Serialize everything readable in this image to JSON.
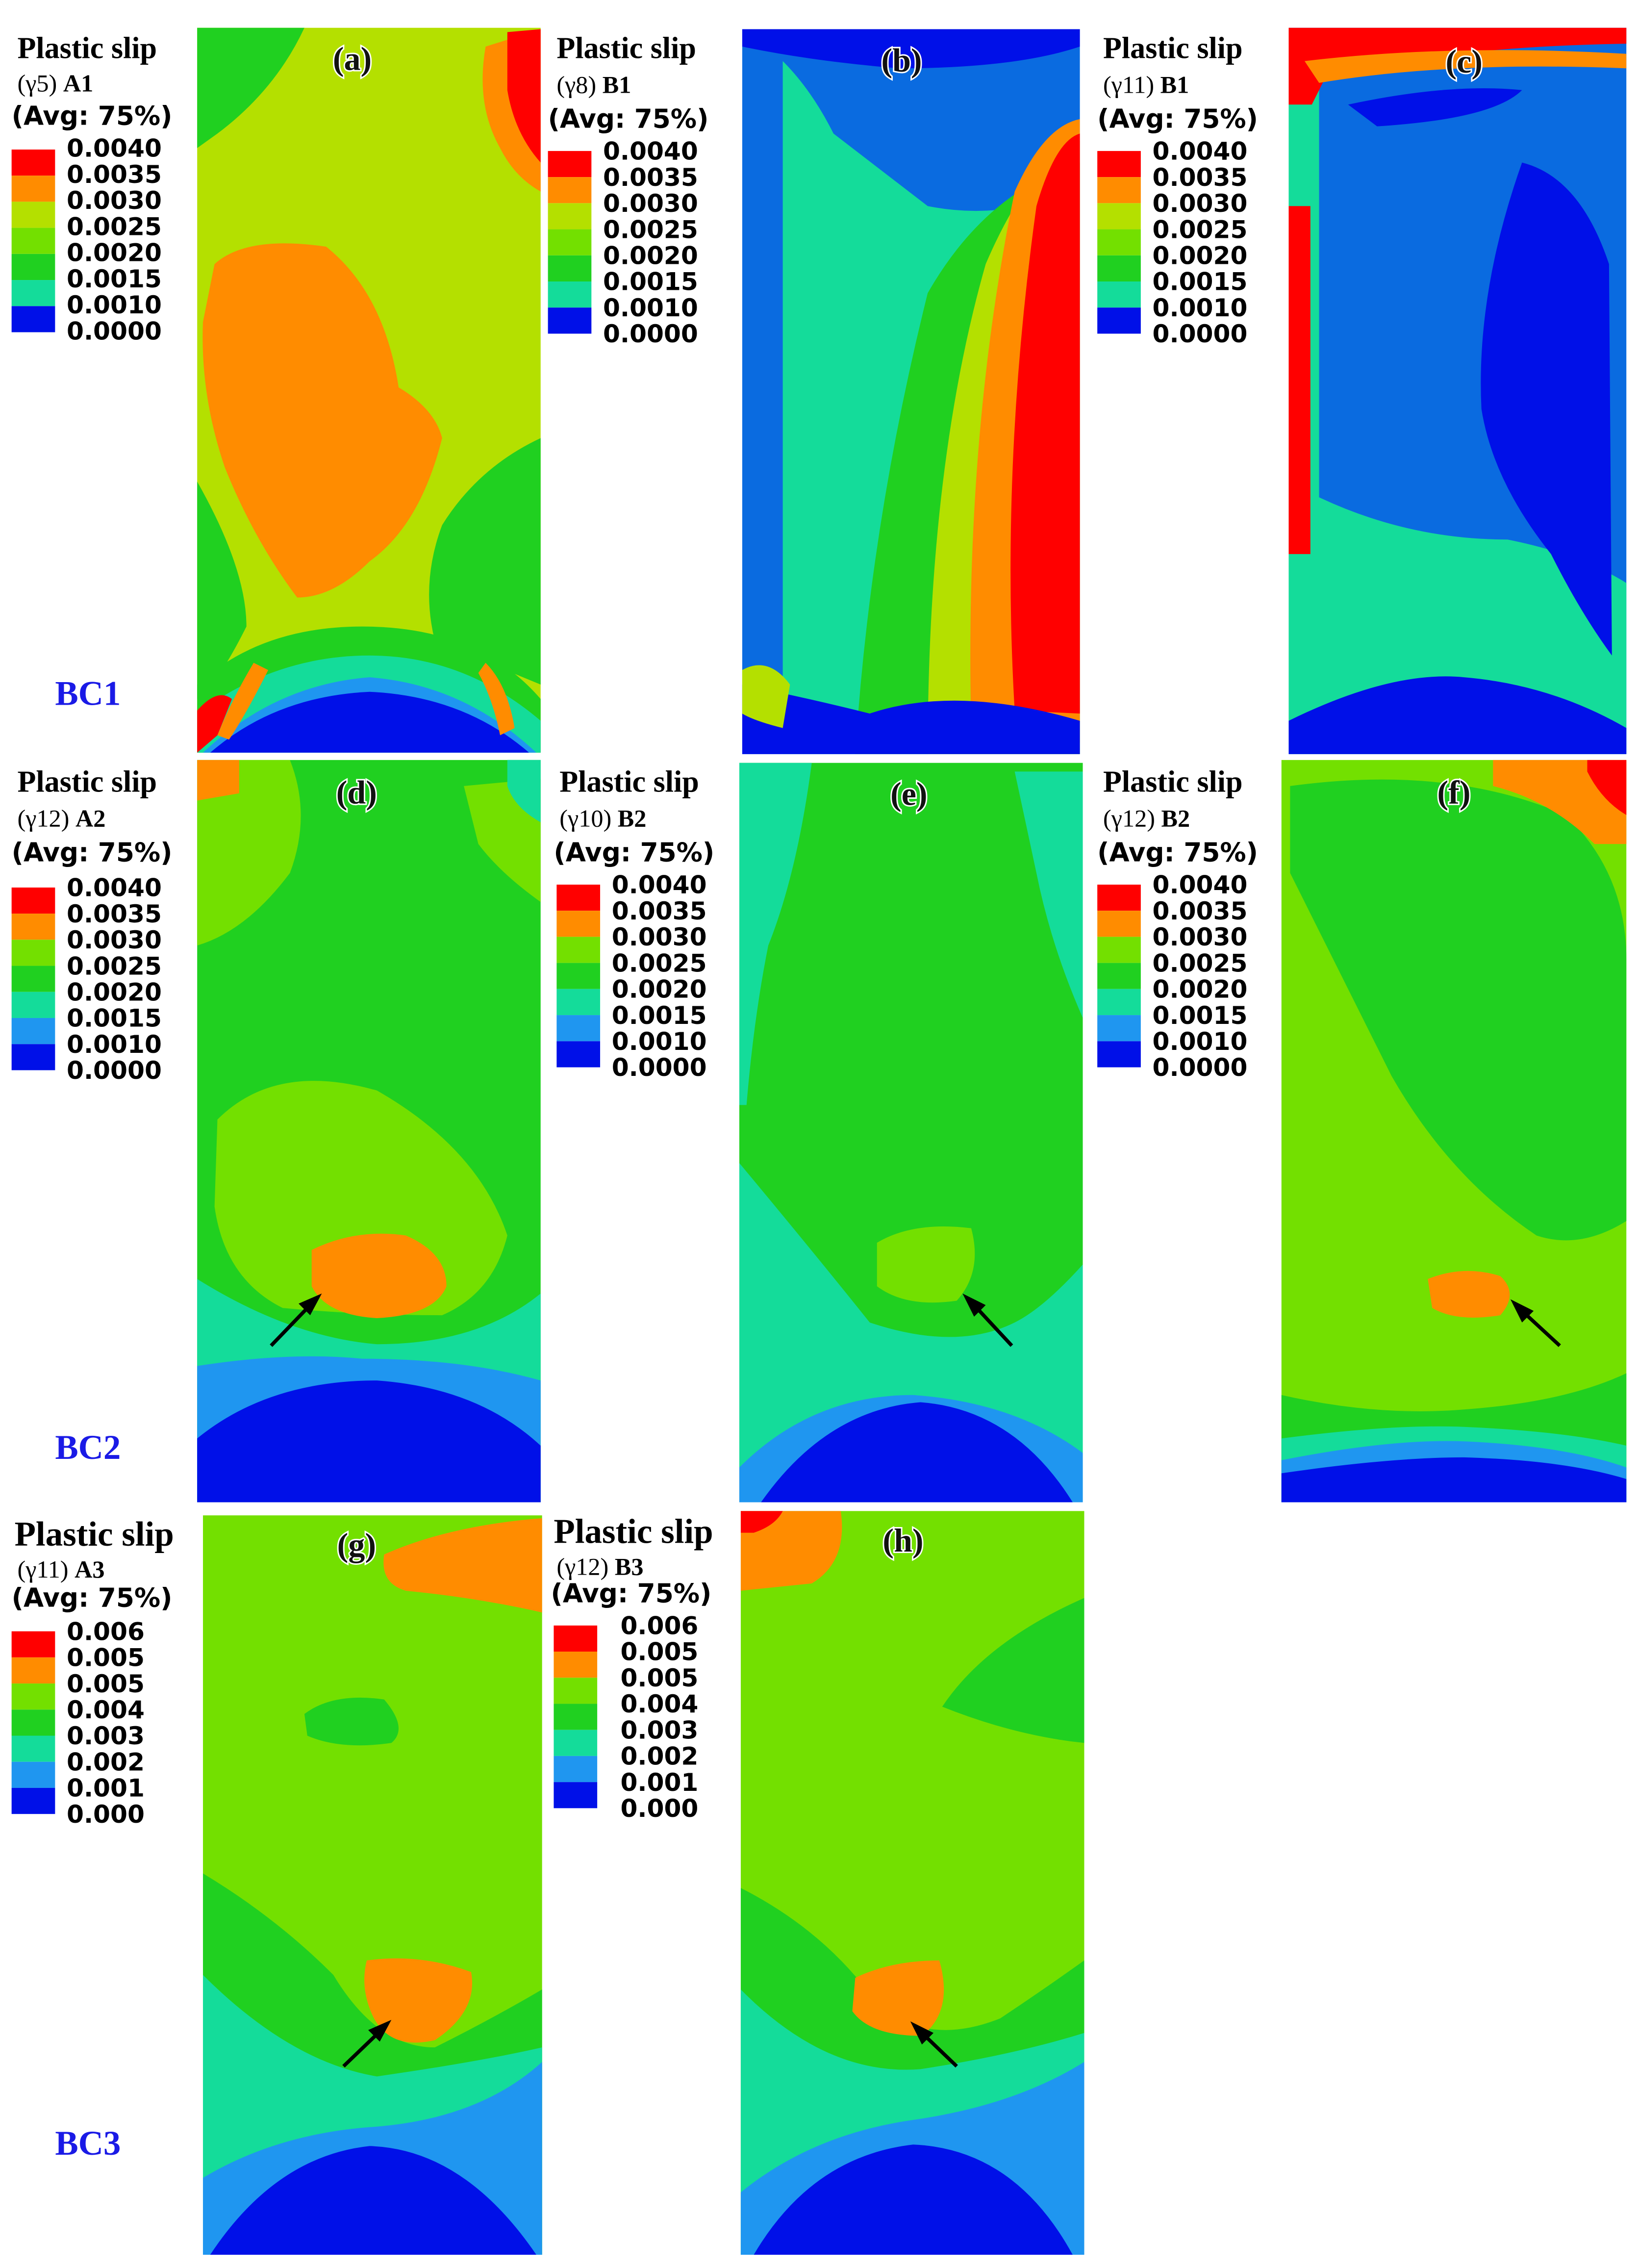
{
  "colors": {
    "red": "#ff0000",
    "orange": "#ff8c00",
    "yellow_green": "#b4e000",
    "light_green": "#73e000",
    "green": "#20d020",
    "teal": "#14dc9a",
    "light_blue": "#1f96f0",
    "blue": "#0010e8",
    "mid_blue": "#0a6be0",
    "label_blue": "#1a1ae6"
  },
  "legend_scale_a": [
    "0.0040",
    "0.0035",
    "0.0030",
    "0.0025",
    "0.0020",
    "0.0015",
    "0.0010",
    "0.0000"
  ],
  "legend_scale_b": [
    "0.006",
    "0.005",
    "0.005",
    "0.004",
    "0.003",
    "0.002",
    "0.001",
    "0.000"
  ],
  "legends": [
    {
      "title": "Plastic slip",
      "symbol": "(γ5)",
      "system": "A1",
      "avg": "(Avg: 75%)"
    },
    {
      "title": "Plastic slip",
      "symbol": "(γ8)",
      "system": "B1",
      "avg": "(Avg: 75%)"
    },
    {
      "title": "Plastic slip",
      "symbol": "(γ11)",
      "system": "B1",
      "avg": "(Avg: 75%)"
    },
    {
      "title": "Plastic slip",
      "symbol": "(γ12)",
      "system": "A2",
      "avg": "(Avg: 75%)"
    },
    {
      "title": "Plastic slip",
      "symbol": "(γ10)",
      "system": "B2",
      "avg": "(Avg: 75%)"
    },
    {
      "title": "Plastic slip",
      "symbol": "(γ12)",
      "system": "B2",
      "avg": "(Avg: 75%)"
    },
    {
      "title": "Plastic slip",
      "symbol": "(γ11)",
      "system": "A3",
      "avg": "(Avg: 75%)"
    },
    {
      "title": "Plastic slip",
      "symbol": "(γ12)",
      "system": "B3",
      "avg": "(Avg: 75%)"
    }
  ],
  "panels": [
    {
      "label": "(a)"
    },
    {
      "label": "(b)"
    },
    {
      "label": "(c)"
    },
    {
      "label": "(d)"
    },
    {
      "label": "(e)"
    },
    {
      "label": "(f)"
    },
    {
      "label": "(g)"
    },
    {
      "label": "(h)"
    }
  ],
  "rows": [
    {
      "label": "BC1"
    },
    {
      "label": "BC2"
    },
    {
      "label": "BC3"
    }
  ]
}
